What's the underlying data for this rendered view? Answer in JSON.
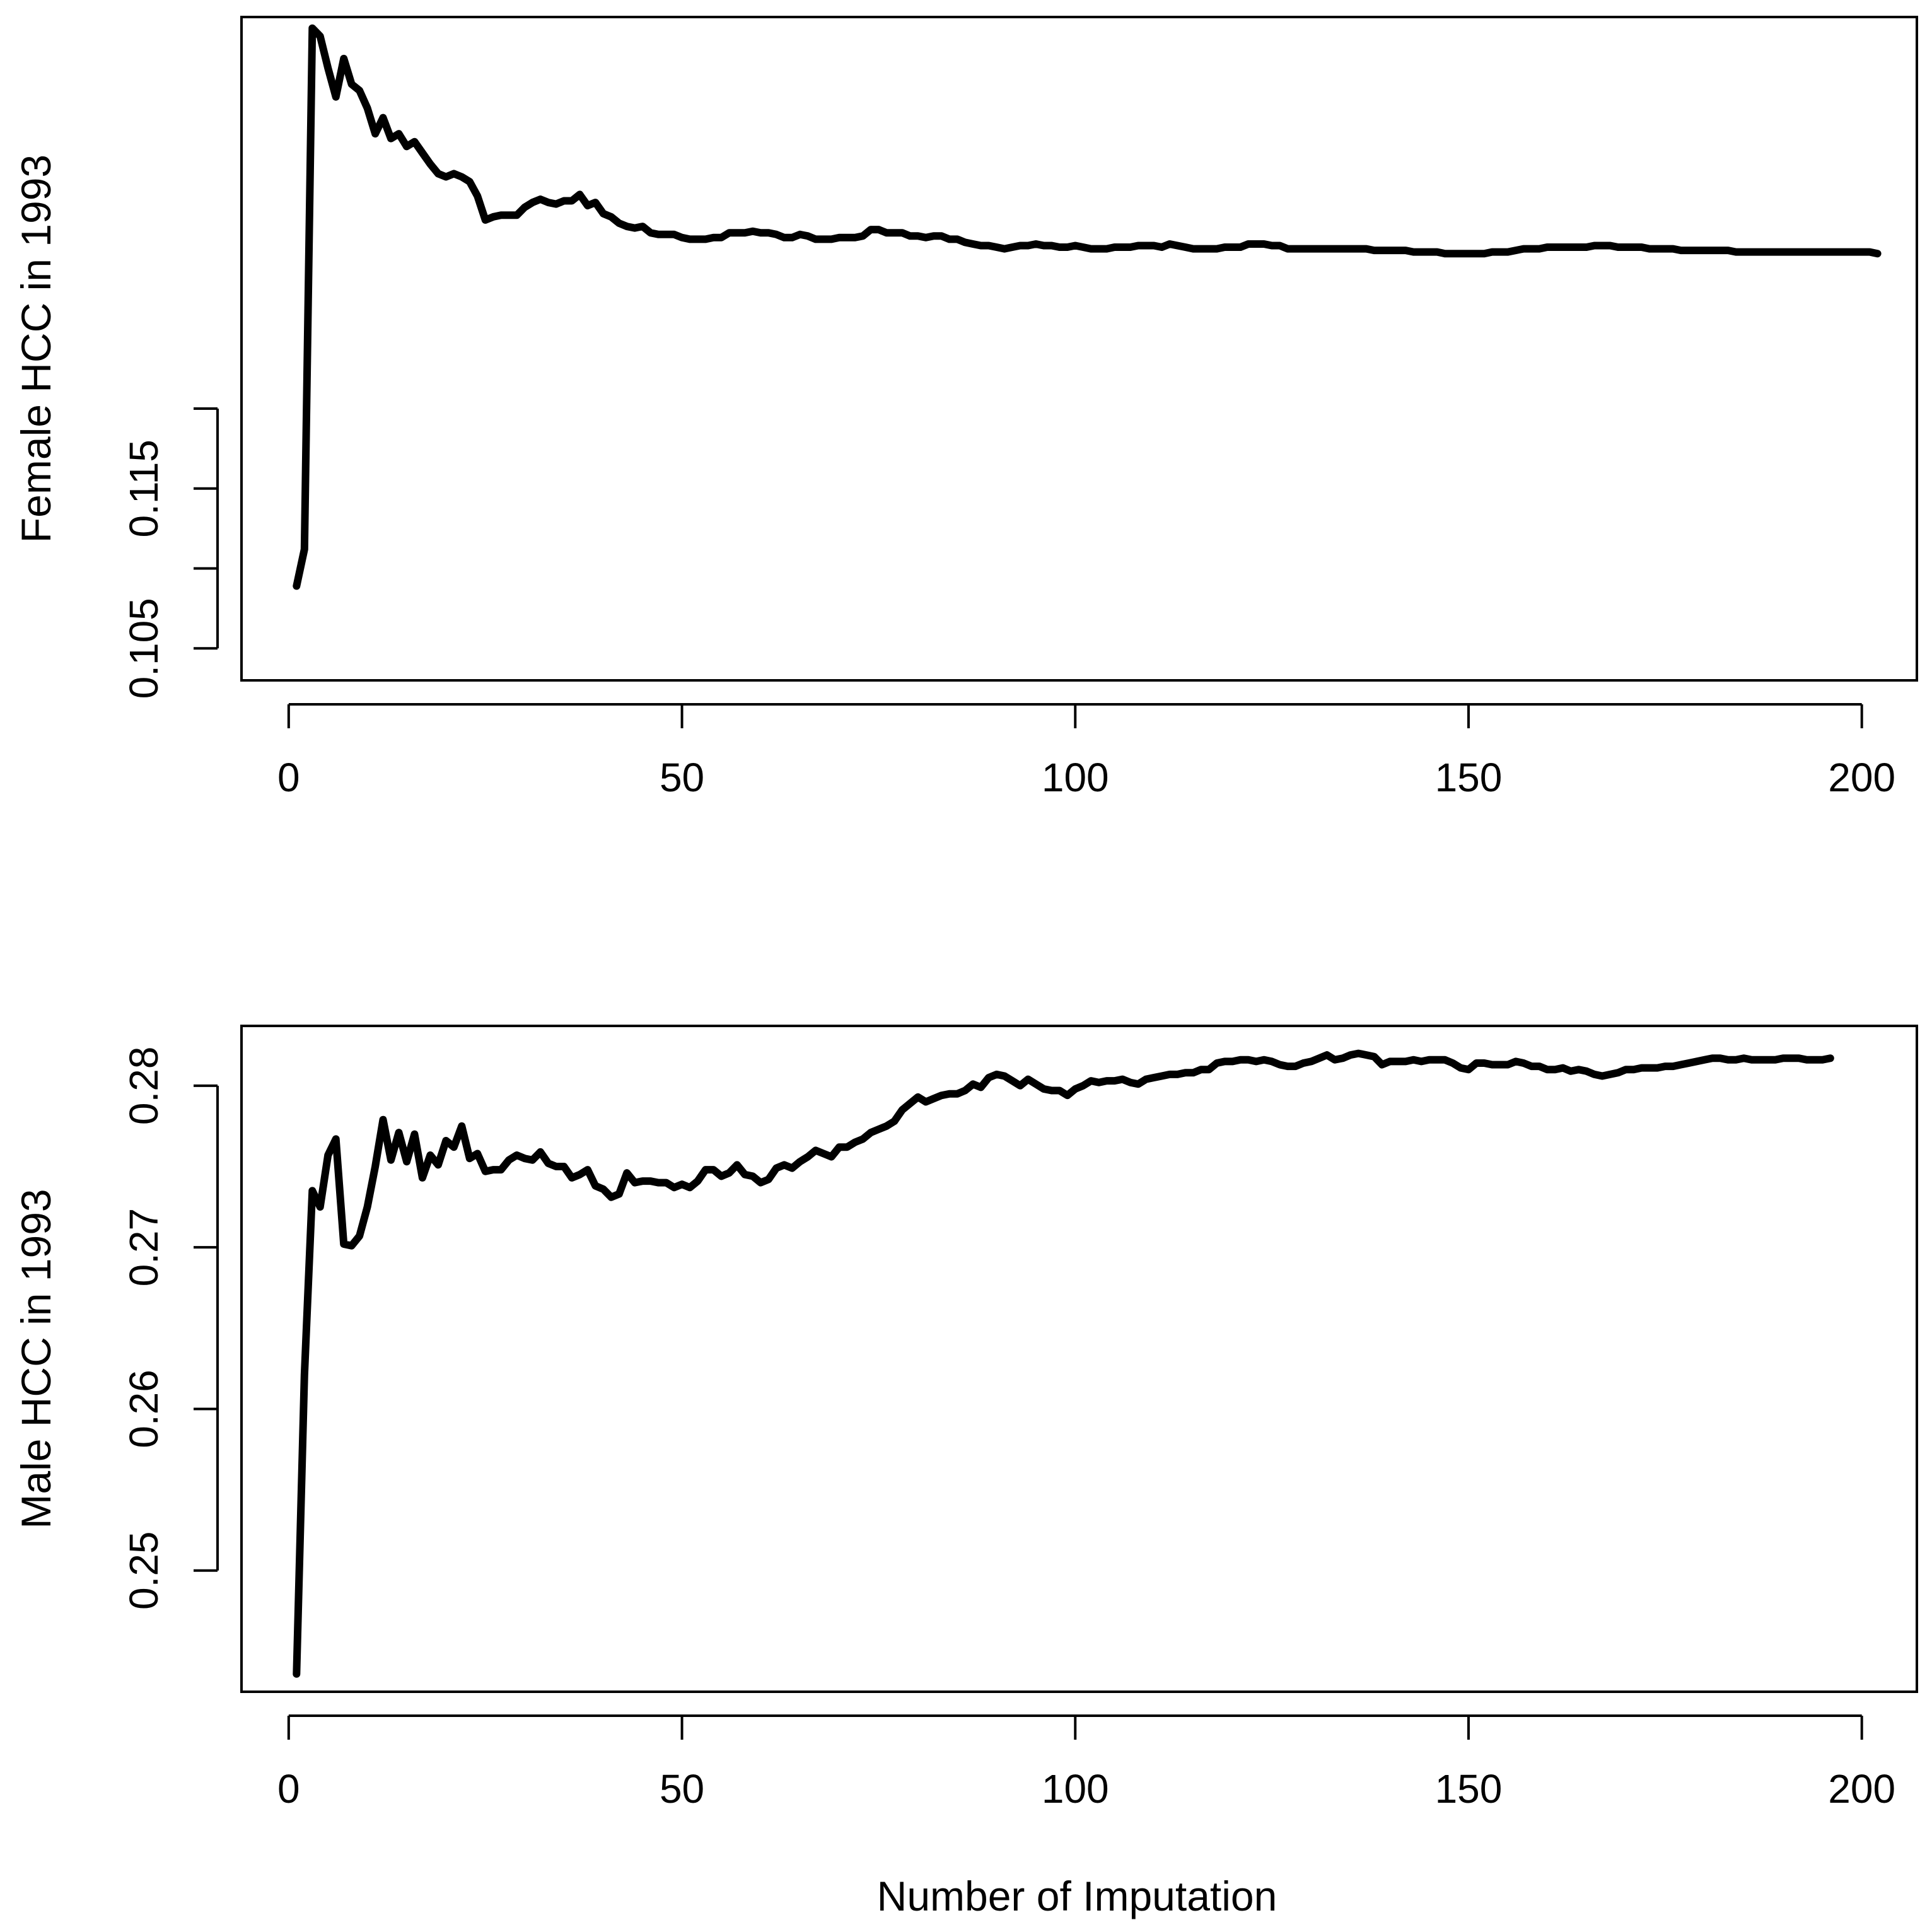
{
  "figure": {
    "xlabel": "Number of Imputation"
  },
  "colors": {
    "line": "#000000",
    "frame": "#000000",
    "background": "#ffffff"
  },
  "chart_data": [
    {
      "type": "line",
      "title": "",
      "xlabel": "",
      "ylabel": "Female HCC in 1993",
      "xlim": [
        -6,
        207
      ],
      "ylim": [
        0.103,
        0.1445
      ],
      "x_ticks": [
        0,
        50,
        100,
        150,
        200
      ],
      "x_tick_labels": [
        "0",
        "50",
        "100",
        "150",
        "200"
      ],
      "y_ticks": [
        0.105,
        0.11,
        0.115,
        0.12
      ],
      "y_tick_labels": [
        "0.105",
        "",
        "0.115",
        ""
      ],
      "grid": false,
      "series": [
        {
          "x_start": 1,
          "x_step": 1,
          "values": [
            0.1089,
            0.1112,
            0.1438,
            0.1433,
            0.1413,
            0.1395,
            0.1419,
            0.1403,
            0.1399,
            0.1388,
            0.1372,
            0.1382,
            0.1369,
            0.1372,
            0.1364,
            0.1367,
            0.136,
            0.1353,
            0.1347,
            0.1345,
            0.1347,
            0.1345,
            0.1342,
            0.1333,
            0.1318,
            0.132,
            0.1321,
            0.1321,
            0.1321,
            0.1326,
            0.1329,
            0.1331,
            0.1329,
            0.1328,
            0.133,
            0.133,
            0.1334,
            0.1327,
            0.1329,
            0.1322,
            0.132,
            0.1316,
            0.1314,
            0.1313,
            0.1314,
            0.131,
            0.1309,
            0.1309,
            0.1309,
            0.1307,
            0.1306,
            0.1306,
            0.1306,
            0.1307,
            0.1307,
            0.131,
            0.131,
            0.131,
            0.1311,
            0.131,
            0.131,
            0.1309,
            0.1307,
            0.1307,
            0.1309,
            0.1308,
            0.1306,
            0.1306,
            0.1306,
            0.1307,
            0.1307,
            0.1307,
            0.1308,
            0.1312,
            0.1312,
            0.131,
            0.131,
            0.131,
            0.1308,
            0.1308,
            0.1307,
            0.1308,
            0.1308,
            0.1306,
            0.1306,
            0.1304,
            0.1303,
            0.1302,
            0.1302,
            0.1301,
            0.13,
            0.1301,
            0.1302,
            0.1302,
            0.1303,
            0.1302,
            0.1302,
            0.1301,
            0.1301,
            0.1302,
            0.1301,
            0.13,
            0.13,
            0.13,
            0.1301,
            0.1301,
            0.1301,
            0.1302,
            0.1302,
            0.1302,
            0.1301,
            0.1303,
            0.1302,
            0.1301,
            0.13,
            0.13,
            0.13,
            0.13,
            0.1301,
            0.1301,
            0.1301,
            0.1303,
            0.1303,
            0.1303,
            0.1302,
            0.1302,
            0.13,
            0.13,
            0.13,
            0.13,
            0.13,
            0.13,
            0.13,
            0.13,
            0.13,
            0.13,
            0.13,
            0.1299,
            0.1299,
            0.1299,
            0.1299,
            0.1299,
            0.1298,
            0.1298,
            0.1298,
            0.1298,
            0.1297,
            0.1297,
            0.1297,
            0.1297,
            0.1297,
            0.1297,
            0.1298,
            0.1298,
            0.1298,
            0.1299,
            0.13,
            0.13,
            0.13,
            0.1301,
            0.1301,
            0.1301,
            0.1301,
            0.1301,
            0.1301,
            0.1302,
            0.1302,
            0.1302,
            0.1301,
            0.1301,
            0.1301,
            0.1301,
            0.13,
            0.13,
            0.13,
            0.13,
            0.1299,
            0.1299,
            0.1299,
            0.1299,
            0.1299,
            0.1299,
            0.1299,
            0.1298,
            0.1298,
            0.1298,
            0.1298,
            0.1298,
            0.1298,
            0.1298,
            0.1298,
            0.1298,
            0.1298,
            0.1298,
            0.1298,
            0.1298,
            0.1298,
            0.1298,
            0.1298,
            0.1298,
            0.1298,
            0.1297
          ]
        }
      ]
    },
    {
      "type": "line",
      "title": "",
      "xlabel": "",
      "ylabel": "Male HCC in 1993",
      "xlim": [
        -6,
        207
      ],
      "ylim": [
        0.2425,
        0.2837
      ],
      "x_ticks": [
        0,
        50,
        100,
        150,
        200
      ],
      "x_tick_labels": [
        "0",
        "50",
        "100",
        "150",
        "200"
      ],
      "y_ticks": [
        0.25,
        0.26,
        0.27,
        0.28
      ],
      "y_tick_labels": [
        "0.25",
        "0.26",
        "0.27",
        "0.28"
      ],
      "grid": false,
      "series": [
        {
          "x_start": 1,
          "x_step": 1,
          "values": [
            0.2436,
            0.2621,
            0.2735,
            0.2725,
            0.2757,
            0.2767,
            0.2702,
            0.2701,
            0.2707,
            0.2725,
            0.275,
            0.2779,
            0.2754,
            0.2771,
            0.2753,
            0.277,
            0.2743,
            0.2757,
            0.2751,
            0.2766,
            0.2762,
            0.2775,
            0.2755,
            0.2758,
            0.2747,
            0.2748,
            0.2748,
            0.2754,
            0.2757,
            0.2755,
            0.2754,
            0.2759,
            0.2752,
            0.275,
            0.275,
            0.2743,
            0.2745,
            0.2748,
            0.2738,
            0.2736,
            0.2731,
            0.2733,
            0.2746,
            0.274,
            0.2741,
            0.2741,
            0.274,
            0.274,
            0.2737,
            0.2739,
            0.2737,
            0.2741,
            0.2748,
            0.2748,
            0.2744,
            0.2746,
            0.2751,
            0.2745,
            0.2744,
            0.274,
            0.2742,
            0.2749,
            0.2751,
            0.2749,
            0.2753,
            0.2756,
            0.276,
            0.2758,
            0.2756,
            0.2762,
            0.2762,
            0.2765,
            0.2767,
            0.2771,
            0.2773,
            0.2775,
            0.2778,
            0.2785,
            0.2789,
            0.2793,
            0.279,
            0.2792,
            0.2794,
            0.2795,
            0.2795,
            0.2797,
            0.2801,
            0.2799,
            0.2805,
            0.2807,
            0.2806,
            0.2803,
            0.28,
            0.2804,
            0.2801,
            0.2798,
            0.2797,
            0.2797,
            0.2794,
            0.2798,
            0.28,
            0.2803,
            0.2802,
            0.2803,
            0.2803,
            0.2804,
            0.2802,
            0.2801,
            0.2804,
            0.2805,
            0.2806,
            0.2807,
            0.2807,
            0.2808,
            0.2808,
            0.281,
            0.281,
            0.2814,
            0.2815,
            0.2815,
            0.2816,
            0.2816,
            0.2815,
            0.2816,
            0.2815,
            0.2813,
            0.2812,
            0.2812,
            0.2814,
            0.2815,
            0.2817,
            0.2819,
            0.2816,
            0.2817,
            0.2819,
            0.282,
            0.2819,
            0.2818,
            0.2813,
            0.2815,
            0.2815,
            0.2815,
            0.2816,
            0.2815,
            0.2816,
            0.2816,
            0.2816,
            0.2814,
            0.2811,
            0.281,
            0.2814,
            0.2814,
            0.2813,
            0.2813,
            0.2813,
            0.2815,
            0.2814,
            0.2812,
            0.2812,
            0.281,
            0.281,
            0.2811,
            0.2809,
            0.281,
            0.2809,
            0.2807,
            0.2806,
            0.2807,
            0.2808,
            0.281,
            0.281,
            0.2811,
            0.2811,
            0.2811,
            0.2812,
            0.2812,
            0.2813,
            0.2814,
            0.2815,
            0.2816,
            0.2817,
            0.2817,
            0.2816,
            0.2816,
            0.2817,
            0.2816,
            0.2816,
            0.2816,
            0.2816,
            0.2817,
            0.2817,
            0.2817,
            0.2816,
            0.2816,
            0.2816,
            0.2817
          ]
        }
      ]
    }
  ]
}
